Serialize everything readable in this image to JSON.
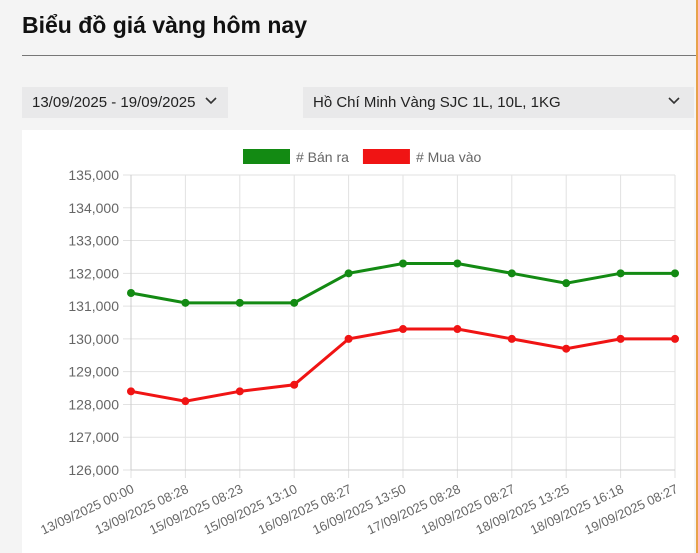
{
  "header": {
    "title": "Biểu đồ giá vàng hôm nay"
  },
  "filters": {
    "date_range": "13/09/2025 - 19/09/2025",
    "product": "Hồ Chí Minh Vàng SJC 1L, 10L, 1KG"
  },
  "chart_data": {
    "type": "line",
    "categories": [
      "13/09/2025 00:00",
      "13/09/2025 08:28",
      "15/09/2025 08:23",
      "15/09/2025 13:10",
      "16/09/2025 08:27",
      "16/09/2025 13:50",
      "17/09/2025 08:28",
      "18/09/2025 08:27",
      "18/09/2025 13:25",
      "18/09/2025 16:18",
      "19/09/2025 08:27"
    ],
    "series": [
      {
        "name": "# Bán ra",
        "color": "#138a13",
        "values": [
          131400,
          131100,
          131100,
          131100,
          132000,
          132300,
          132300,
          132000,
          131700,
          132000,
          132000
        ]
      },
      {
        "name": "# Mua vào",
        "color": "#f01414",
        "values": [
          128400,
          128100,
          128400,
          128600,
          130000,
          130300,
          130300,
          130000,
          129700,
          130000,
          130000
        ]
      }
    ],
    "ylim": [
      126000,
      135000
    ],
    "yticks": [
      {
        "value": 126000,
        "label": "126,000"
      },
      {
        "value": 127000,
        "label": "127,000"
      },
      {
        "value": 128000,
        "label": "128,000"
      },
      {
        "value": 129000,
        "label": "129,000"
      },
      {
        "value": 130000,
        "label": "130,000"
      },
      {
        "value": 131000,
        "label": "131,000"
      },
      {
        "value": 132000,
        "label": "132,000"
      },
      {
        "value": 133000,
        "label": "133,000"
      },
      {
        "value": 134000,
        "label": "134,000"
      },
      {
        "value": 135000,
        "label": "135,000"
      }
    ],
    "grid": true
  }
}
